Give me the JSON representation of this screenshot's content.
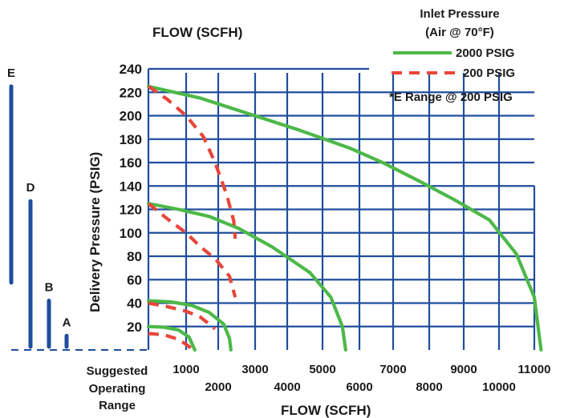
{
  "chart_data": {
    "type": "line",
    "title": "FLOW (SCFH)",
    "xlabel": "FLOW (SCFH)",
    "ylabel": "Delivery Pressure (PSIG)",
    "xlim": [
      0,
      11000
    ],
    "ylim": [
      0,
      240
    ],
    "x_ticks_lower": [
      "1000",
      "2000",
      "3000",
      "4000",
      "5000",
      "6000",
      "7000",
      "8000",
      "9000",
      "10000",
      "11000"
    ],
    "x_ticks_upper": [
      "1000",
      "2000",
      "3000",
      "4000",
      "5000",
      "6000",
      "7000",
      "8000",
      "9000",
      "10000",
      "11000"
    ],
    "y_ticks": [
      "20",
      "40",
      "60",
      "80",
      "100",
      "120",
      "140",
      "160",
      "180",
      "200",
      "220",
      "240"
    ],
    "grid": true,
    "legend": {
      "title_line1": "Inlet Pressure",
      "title_line2": "(Air @ 70°F)",
      "note": "*E Range @ 200 PSIG",
      "placement": "top-right"
    },
    "series": [
      {
        "name": "2000 PSIG",
        "color": "#4db848",
        "style": "solid",
        "curves": [
          [
            [
              0,
              225
            ],
            [
              1500,
              215
            ],
            [
              3000,
              203
            ],
            [
              4500,
              188
            ],
            [
              6000,
              172
            ],
            [
              7000,
              160
            ],
            [
              8000,
              144
            ],
            [
              9000,
              128
            ],
            [
              10000,
              111
            ],
            [
              10600,
              82
            ],
            [
              11000,
              45
            ],
            [
              11150,
              0
            ]
          ],
          [
            [
              0,
              125
            ],
            [
              800,
              120
            ],
            [
              1800,
              114
            ],
            [
              2800,
              104
            ],
            [
              3800,
              88
            ],
            [
              4800,
              66
            ],
            [
              5400,
              45
            ],
            [
              5750,
              20
            ],
            [
              5850,
              0
            ]
          ],
          [
            [
              0,
              42
            ],
            [
              600,
              41
            ],
            [
              1200,
              38
            ],
            [
              1800,
              32
            ],
            [
              2300,
              22
            ],
            [
              2500,
              10
            ],
            [
              2550,
              0
            ]
          ],
          [
            [
              0,
              20
            ],
            [
              400,
              19.5
            ],
            [
              800,
              17
            ],
            [
              1100,
              11
            ],
            [
              1300,
              0
            ]
          ]
        ]
      },
      {
        "name": "200 PSIG",
        "color": "#e8463a",
        "style": "dashed",
        "curves": [
          [
            [
              0,
              225
            ],
            [
              500,
              214
            ],
            [
              1000,
              200
            ],
            [
              1600,
              182
            ],
            [
              2000,
              160
            ],
            [
              2400,
              133
            ],
            [
              2650,
              110
            ],
            [
              2700,
              95
            ]
          ],
          [
            [
              0,
              125
            ],
            [
              500,
              112
            ],
            [
              1000,
              100
            ],
            [
              1500,
              88
            ],
            [
              2000,
              78
            ],
            [
              2500,
              63
            ],
            [
              2700,
              45
            ]
          ],
          [
            [
              0,
              40
            ],
            [
              500,
              37
            ],
            [
              1000,
              33
            ],
            [
              1500,
              28
            ],
            [
              2000,
              18
            ]
          ],
          [
            [
              0,
              14
            ],
            [
              400,
              13
            ],
            [
              800,
              9
            ],
            [
              1100,
              3
            ],
            [
              1200,
              0
            ]
          ]
        ]
      }
    ],
    "operating_range": {
      "label_line1": "Suggested",
      "label_line2": "Operating",
      "label_line3": "Range",
      "color": "#1f4e9c",
      "bars": [
        {
          "letter": "E",
          "top": 225,
          "bottom": 60
        },
        {
          "letter": "D",
          "top": 125,
          "bottom": 0
        },
        {
          "letter": "B",
          "top": 40,
          "bottom": 0
        },
        {
          "letter": "A",
          "top": 10,
          "bottom": 0
        }
      ]
    }
  }
}
